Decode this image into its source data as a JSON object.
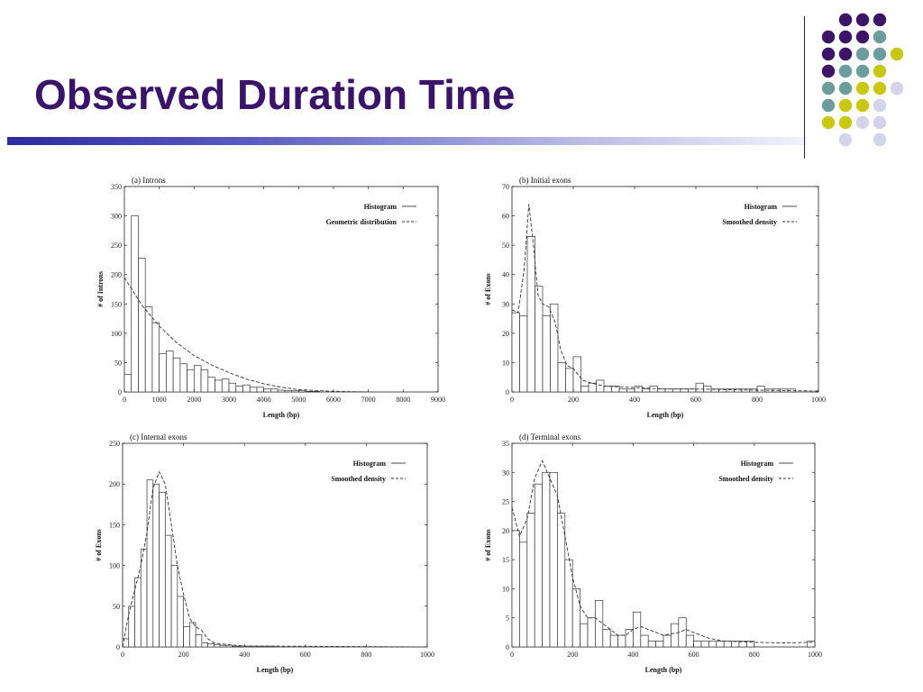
{
  "slide": {
    "title": "Observed Duration Time",
    "colors": {
      "title": "#3a1468",
      "dot_purple": "#3d1566",
      "dot_teal": "#6d9c9c",
      "dot_yellow": "#c8c814",
      "dot_lavender": "#d3d3ea"
    }
  },
  "chart_data": [
    {
      "type": "bar",
      "title": "(a) Introns",
      "xlabel": "Length (bp)",
      "ylabel": "# of Introns",
      "xlim": [
        0,
        9000
      ],
      "ylim": [
        0,
        350
      ],
      "xticks": [
        0,
        1000,
        2000,
        3000,
        4000,
        5000,
        6000,
        7000,
        8000,
        9000
      ],
      "yticks": [
        0,
        50,
        100,
        150,
        200,
        250,
        300,
        350
      ],
      "legend": [
        "Histogram",
        "Geometric distribution"
      ],
      "legend_position": "top-right",
      "bin_width": 200,
      "values": [
        30,
        300,
        228,
        145,
        118,
        65,
        70,
        58,
        48,
        38,
        45,
        38,
        25,
        20,
        22,
        15,
        10,
        12,
        8,
        8,
        5,
        5,
        3,
        2,
        2,
        2,
        1,
        1
      ],
      "smooth": [
        [
          0,
          195
        ],
        [
          500,
          148
        ],
        [
          1000,
          112
        ],
        [
          1500,
          84
        ],
        [
          2000,
          62
        ],
        [
          2500,
          46
        ],
        [
          3000,
          33
        ],
        [
          3500,
          22
        ],
        [
          4000,
          14
        ],
        [
          4500,
          8
        ],
        [
          5000,
          4
        ],
        [
          6000,
          1
        ],
        [
          7000,
          0
        ]
      ]
    },
    {
      "type": "bar",
      "title": "(b) Initial exons",
      "xlabel": "Length (bp)",
      "ylabel": "# of Exons",
      "xlim": [
        0,
        1000
      ],
      "ylim": [
        0,
        70
      ],
      "xticks": [
        0,
        200,
        400,
        600,
        800,
        1000
      ],
      "yticks": [
        0,
        10,
        20,
        30,
        40,
        50,
        60,
        70
      ],
      "legend": [
        "Histogram",
        "Smoothed density"
      ],
      "legend_position": "top-right",
      "bin_width": 25,
      "values": [
        27,
        26,
        53,
        36,
        26,
        30,
        10,
        8,
        12,
        2,
        3,
        4,
        2,
        2,
        1,
        1,
        2,
        1,
        2,
        1,
        1,
        1,
        1,
        1,
        3,
        2,
        1,
        1,
        1,
        1,
        1,
        1,
        2,
        1,
        1,
        1,
        1,
        0,
        0,
        0
      ],
      "smooth": [
        [
          0,
          28
        ],
        [
          20,
          27
        ],
        [
          40,
          42
        ],
        [
          55,
          64
        ],
        [
          70,
          50
        ],
        [
          85,
          33
        ],
        [
          100,
          30
        ],
        [
          120,
          29
        ],
        [
          140,
          24
        ],
        [
          160,
          14
        ],
        [
          180,
          9
        ],
        [
          200,
          8
        ],
        [
          230,
          4
        ],
        [
          260,
          3
        ],
        [
          300,
          2
        ],
        [
          400,
          1.5
        ],
        [
          500,
          1
        ],
        [
          600,
          1
        ],
        [
          700,
          0.8
        ],
        [
          800,
          0.6
        ],
        [
          1000,
          0.3
        ]
      ]
    },
    {
      "type": "bar",
      "title": "(c) Internal exons",
      "xlabel": "Length (bp)",
      "ylabel": "# of Exons",
      "xlim": [
        0,
        1000
      ],
      "ylim": [
        0,
        250
      ],
      "xticks": [
        0,
        200,
        400,
        600,
        800,
        1000
      ],
      "yticks": [
        0,
        50,
        100,
        150,
        200,
        250
      ],
      "legend": [
        "Histogram",
        "Smoothed density"
      ],
      "legend_position": "top-right",
      "bin_width": 20,
      "values": [
        10,
        50,
        85,
        120,
        205,
        200,
        190,
        137,
        100,
        62,
        25,
        30,
        15,
        5,
        4,
        3,
        2,
        2,
        1,
        1,
        1,
        1,
        1,
        1,
        1,
        0,
        0,
        0,
        0,
        0,
        0,
        0,
        0,
        0,
        0,
        0,
        0,
        0,
        0,
        0
      ],
      "smooth": [
        [
          0,
          0
        ],
        [
          20,
          40
        ],
        [
          40,
          70
        ],
        [
          60,
          100
        ],
        [
          80,
          140
        ],
        [
          100,
          195
        ],
        [
          120,
          215
        ],
        [
          140,
          200
        ],
        [
          160,
          150
        ],
        [
          180,
          100
        ],
        [
          200,
          65
        ],
        [
          220,
          35
        ],
        [
          240,
          25
        ],
        [
          260,
          20
        ],
        [
          280,
          10
        ],
        [
          300,
          5
        ],
        [
          340,
          3
        ],
        [
          400,
          1
        ],
        [
          500,
          1
        ],
        [
          1000,
          0
        ]
      ]
    },
    {
      "type": "bar",
      "title": "(d) Terminal exons",
      "xlabel": "Length (bp)",
      "ylabel": "# of Exons",
      "xlim": [
        0,
        1000
      ],
      "ylim": [
        0,
        35
      ],
      "xticks": [
        0,
        200,
        400,
        600,
        800,
        1000
      ],
      "yticks": [
        0,
        5,
        10,
        15,
        20,
        25,
        30,
        35
      ],
      "legend": [
        "Histogram",
        "Smoothed density"
      ],
      "legend_position": "top-right",
      "bin_width": 25,
      "values": [
        20,
        18,
        23,
        28,
        30,
        30,
        23,
        15,
        10,
        4,
        5,
        8,
        3,
        2,
        2,
        3,
        6,
        2,
        1,
        1,
        2,
        4,
        5,
        2,
        1,
        1,
        1,
        1,
        1,
        1,
        1,
        1,
        0,
        0,
        0,
        0,
        0,
        0,
        0,
        1
      ],
      "smooth": [
        [
          0,
          24
        ],
        [
          25,
          19
        ],
        [
          50,
          22
        ],
        [
          75,
          29
        ],
        [
          100,
          32
        ],
        [
          125,
          29
        ],
        [
          150,
          26
        ],
        [
          175,
          19
        ],
        [
          200,
          12
        ],
        [
          225,
          7
        ],
        [
          250,
          5
        ],
        [
          275,
          5
        ],
        [
          300,
          4
        ],
        [
          325,
          3
        ],
        [
          350,
          2
        ],
        [
          375,
          2
        ],
        [
          400,
          3
        ],
        [
          425,
          3.5
        ],
        [
          450,
          3
        ],
        [
          500,
          2
        ],
        [
          550,
          2.5
        ],
        [
          575,
          3
        ],
        [
          600,
          2.5
        ],
        [
          650,
          1.5
        ],
        [
          700,
          1
        ],
        [
          800,
          0.8
        ],
        [
          900,
          0.7
        ],
        [
          1000,
          0.8
        ]
      ]
    }
  ]
}
